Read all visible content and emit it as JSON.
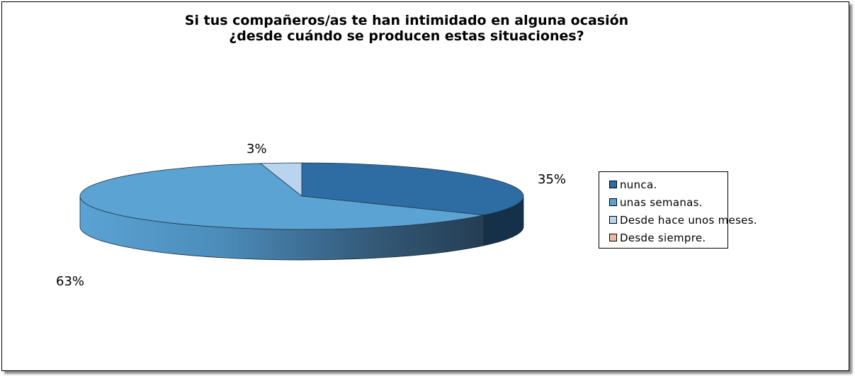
{
  "chart_data": {
    "type": "pie",
    "title_lines": [
      "Si tus compañeros/as te han intimidado en alguna ocasión",
      "¿desde cuándo se producen estas situaciones?"
    ],
    "categories": [
      "nunca.",
      "unas semanas.",
      "Desde hace unos meses.",
      "Desde siempre."
    ],
    "values": [
      35,
      63,
      3,
      0
    ],
    "value_labels": [
      "35%",
      "63%",
      "3%",
      ""
    ],
    "colors": [
      "#2e6ca4",
      "#5ba3d3",
      "#b8d4ee",
      "#e9b9a4"
    ],
    "legend_position": "right",
    "style": "3d"
  }
}
